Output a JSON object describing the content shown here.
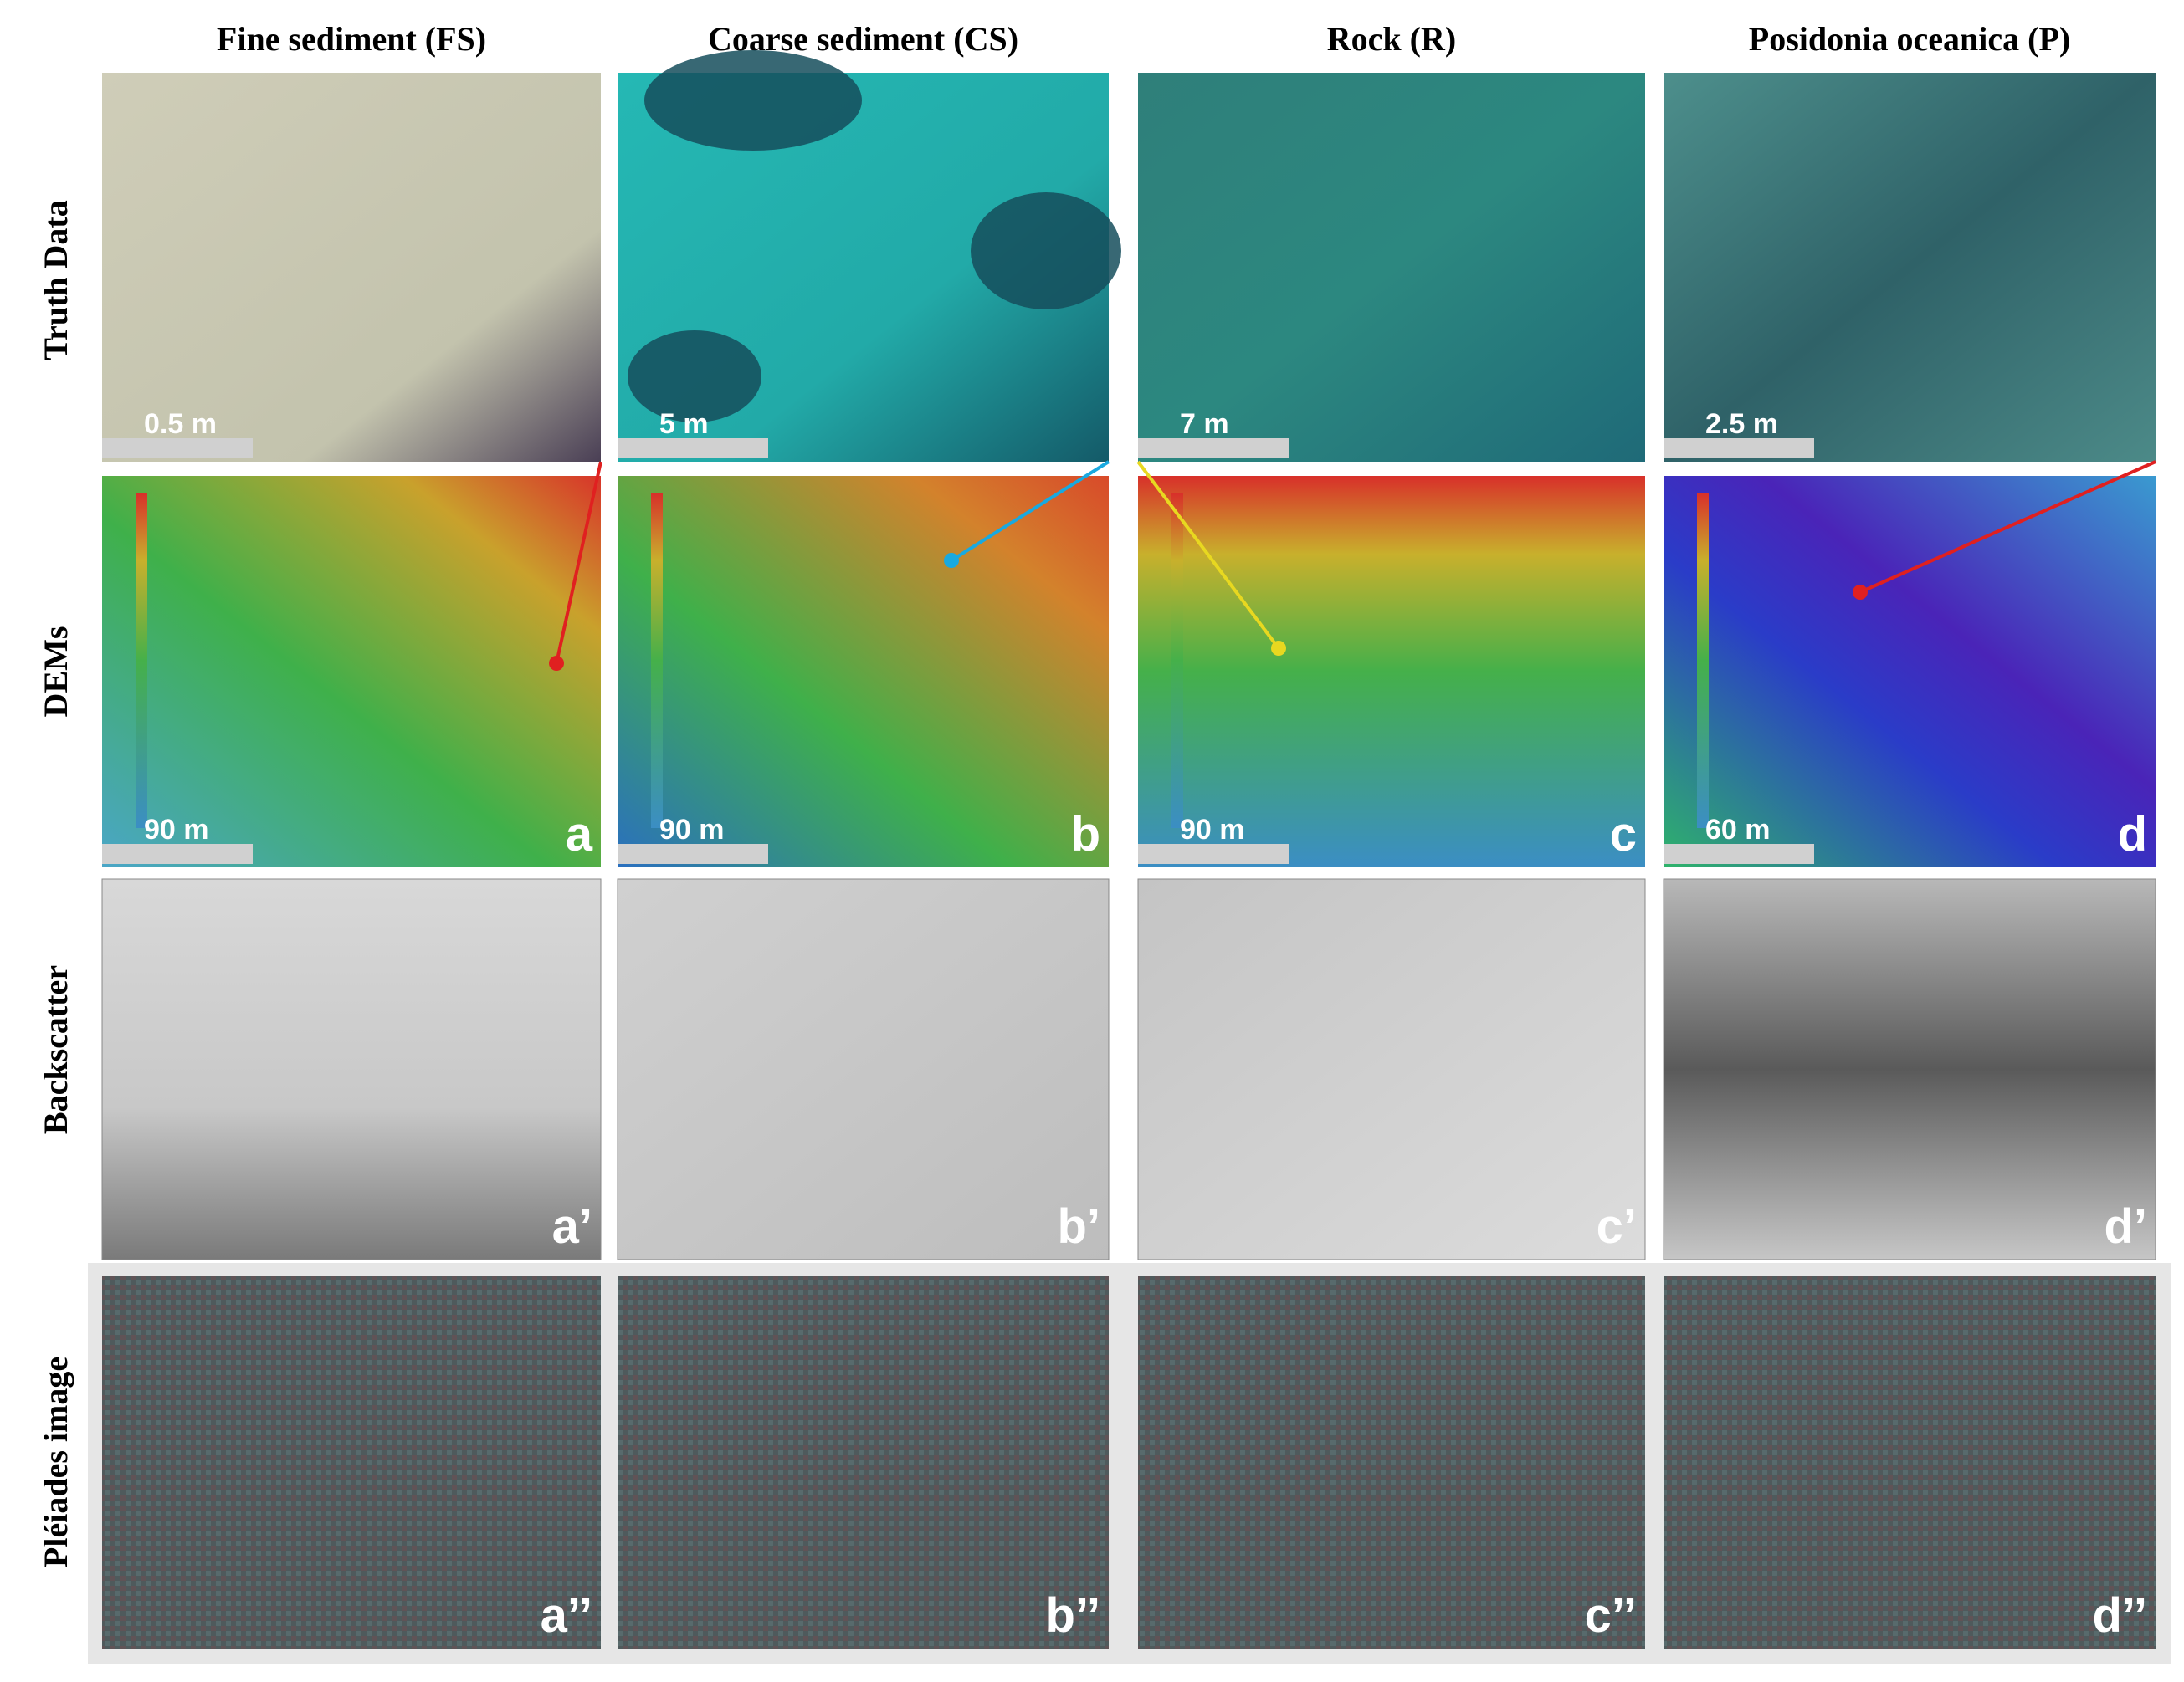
{
  "columns": [
    "Fine sediment (FS)",
    "Coarse sediment (CS)",
    "Rock (R)",
    "Posidonia oceanica (P)"
  ],
  "rows": [
    "Truth Data",
    "DEMs",
    "Backscatter",
    "Pléiades image"
  ],
  "truth_scales": [
    "0.5 m",
    "5 m",
    "7 m",
    "2.5 m"
  ],
  "dem_scales": [
    "90 m",
    "90 m",
    "90 m",
    "60 m"
  ],
  "dem_labels": [
    "a",
    "b",
    "c",
    "d"
  ],
  "backscatter_labels": [
    "a’",
    "b’",
    "c’",
    "d’"
  ],
  "pleiades_labels": [
    "a’’",
    "b’’",
    "c’’",
    "d’’"
  ]
}
